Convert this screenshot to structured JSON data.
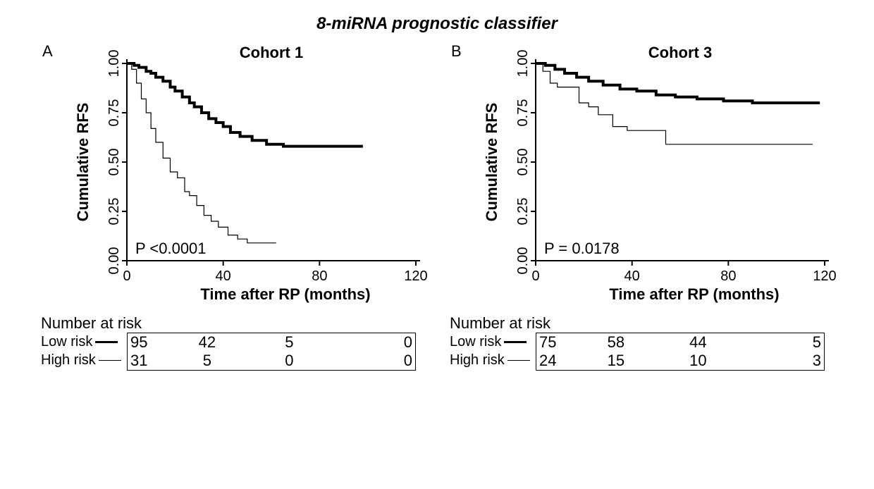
{
  "main_title": "8-miRNA prognostic classifier",
  "global": {
    "ylabel": "Cumulative RFS",
    "xlabel": "Time after RP (months)",
    "nar_title": "Number at risk",
    "low_label": "Low risk",
    "high_label": "High risk",
    "yticks": [
      "0.00",
      "0.25",
      "0.50",
      "0.75",
      "1.00"
    ],
    "xticks": [
      "0",
      "40",
      "80",
      "120"
    ],
    "colors": {
      "background": "#ffffff",
      "axis": "#000000",
      "thick_line": "#000000",
      "thin_line": "#000000",
      "text": "#000000"
    },
    "plot": {
      "xlim": [
        0,
        120
      ],
      "ylim": [
        0,
        1.0
      ],
      "thick_width": 4,
      "thin_width": 1.2
    }
  },
  "panelA": {
    "letter": "A",
    "subtitle": "Cohort 1",
    "pvalue": "P <0.0001",
    "low_series": [
      [
        0,
        1.0
      ],
      [
        3,
        0.99
      ],
      [
        5,
        0.98
      ],
      [
        8,
        0.96
      ],
      [
        10,
        0.95
      ],
      [
        12,
        0.93
      ],
      [
        15,
        0.91
      ],
      [
        18,
        0.88
      ],
      [
        20,
        0.86
      ],
      [
        23,
        0.83
      ],
      [
        26,
        0.8
      ],
      [
        28,
        0.78
      ],
      [
        31,
        0.75
      ],
      [
        34,
        0.72
      ],
      [
        37,
        0.7
      ],
      [
        40,
        0.68
      ],
      [
        43,
        0.65
      ],
      [
        47,
        0.63
      ],
      [
        52,
        0.61
      ],
      [
        58,
        0.59
      ],
      [
        65,
        0.58
      ],
      [
        75,
        0.58
      ],
      [
        88,
        0.58
      ],
      [
        98,
        0.58
      ]
    ],
    "high_series": [
      [
        0,
        1.0
      ],
      [
        2,
        0.97
      ],
      [
        4,
        0.9
      ],
      [
        6,
        0.82
      ],
      [
        8,
        0.75
      ],
      [
        10,
        0.67
      ],
      [
        12,
        0.6
      ],
      [
        15,
        0.52
      ],
      [
        18,
        0.45
      ],
      [
        21,
        0.42
      ],
      [
        24,
        0.35
      ],
      [
        26,
        0.33
      ],
      [
        29,
        0.28
      ],
      [
        32,
        0.23
      ],
      [
        35,
        0.2
      ],
      [
        38,
        0.17
      ],
      [
        42,
        0.13
      ],
      [
        46,
        0.11
      ],
      [
        50,
        0.09
      ],
      [
        56,
        0.09
      ],
      [
        62,
        0.09
      ]
    ],
    "risk_table": {
      "low": [
        "95",
        "42",
        "5",
        "0"
      ],
      "high": [
        "31",
        "5",
        "0",
        "0"
      ]
    }
  },
  "panelB": {
    "letter": "B",
    "subtitle": "Cohort 3",
    "pvalue": "P = 0.0178",
    "low_series": [
      [
        0,
        1.0
      ],
      [
        4,
        0.99
      ],
      [
        8,
        0.97
      ],
      [
        12,
        0.95
      ],
      [
        17,
        0.93
      ],
      [
        22,
        0.91
      ],
      [
        28,
        0.89
      ],
      [
        35,
        0.87
      ],
      [
        42,
        0.86
      ],
      [
        50,
        0.84
      ],
      [
        58,
        0.83
      ],
      [
        67,
        0.82
      ],
      [
        78,
        0.81
      ],
      [
        90,
        0.8
      ],
      [
        105,
        0.8
      ],
      [
        118,
        0.8
      ]
    ],
    "high_series": [
      [
        0,
        1.0
      ],
      [
        3,
        0.96
      ],
      [
        6,
        0.9
      ],
      [
        9,
        0.88
      ],
      [
        13,
        0.88
      ],
      [
        18,
        0.8
      ],
      [
        22,
        0.78
      ],
      [
        26,
        0.74
      ],
      [
        32,
        0.68
      ],
      [
        38,
        0.66
      ],
      [
        45,
        0.66
      ],
      [
        54,
        0.59
      ],
      [
        64,
        0.59
      ],
      [
        80,
        0.59
      ],
      [
        100,
        0.59
      ],
      [
        115,
        0.59
      ]
    ],
    "risk_table": {
      "low": [
        "75",
        "58",
        "44",
        "5"
      ],
      "high": [
        "24",
        "15",
        "10",
        "3"
      ]
    }
  }
}
